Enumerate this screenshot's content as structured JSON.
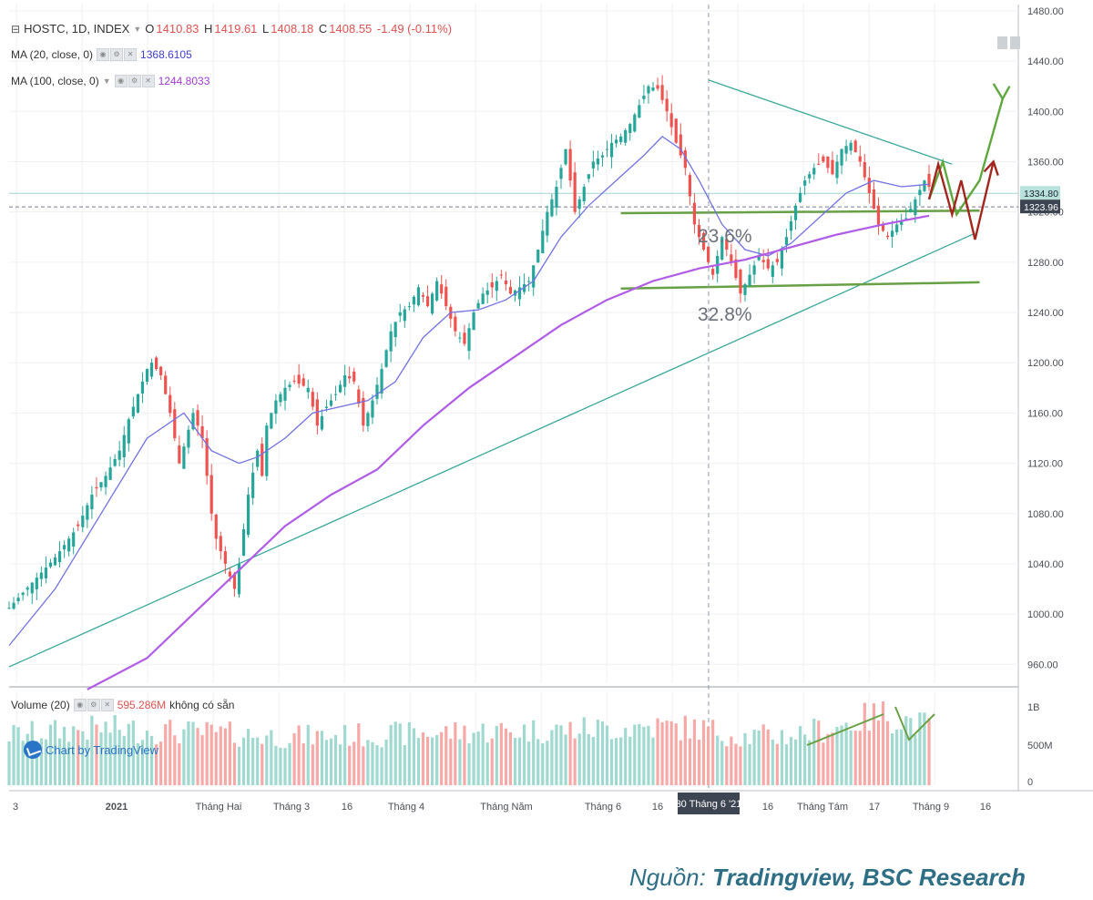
{
  "symbol": "HOSTC, 1D, INDEX",
  "ohlc": {
    "o_label": "O",
    "o": "1410.83",
    "h_label": "H",
    "h": "1419.61",
    "l_label": "L",
    "l": "1408.18",
    "c_label": "C",
    "c": "1408.55",
    "change": "-1.49 (-0.11%)"
  },
  "ma20": {
    "label": "MA (20, close, 0)",
    "value": "1368.6105"
  },
  "ma100": {
    "label": "MA (100, close, 0)",
    "value": "1244.8033"
  },
  "volume_legend": {
    "label": "Volume (20)",
    "value": "595.286M",
    "note": "không có sẵn"
  },
  "watermark": "Chart by TradingView",
  "source_prefix": "Nguồn: ",
  "source_text": "Tradingview, BSC Research",
  "colors": {
    "up": "#26a69a",
    "down": "#ef5350",
    "ma20": "#7272e6",
    "ma100": "#b05ce6",
    "trend": "#3aa89a",
    "support": "#68a046",
    "arrow_up": "#5fa83e",
    "arrow_down": "#a3261e",
    "grid": "#eef0f2"
  },
  "chart_data": {
    "type": "candlestick",
    "title": "HOSTC, 1D, INDEX",
    "y_ticks": [
      "1480.00",
      "1440.00",
      "1400.00",
      "1360.00",
      "1320.00",
      "1280.00",
      "1240.00",
      "1200.00",
      "1160.00",
      "1120.00",
      "1080.00",
      "1040.00",
      "1000.00",
      "960.00"
    ],
    "ylim": [
      945,
      1485
    ],
    "last_price_labels": [
      "1334.80",
      "1323.96"
    ],
    "x_ticks": [
      "3",
      "2021",
      "Tháng Hai",
      "Tháng 3",
      "16",
      "Tháng 4",
      "Tháng Năm",
      "Tháng 6",
      "16",
      "30 Tháng 6 '21",
      "16",
      "Tháng Tám",
      "17",
      "Tháng 9",
      "16"
    ],
    "volume_ticks": [
      "1B",
      "500M",
      "0"
    ],
    "fib_labels": [
      "23.6%",
      "32.8%"
    ],
    "ma20_label": "MA (20, close, 0)",
    "ma100_label": "MA (100, close, 0)",
    "price_path": [
      [
        0,
        1005
      ],
      [
        5,
        1025
      ],
      [
        10,
        1045
      ],
      [
        15,
        1070
      ],
      [
        18,
        1095
      ],
      [
        21,
        1110
      ],
      [
        24,
        1130
      ],
      [
        26,
        1155
      ],
      [
        28,
        1175
      ],
      [
        30,
        1195
      ],
      [
        31,
        1200
      ],
      [
        33,
        1190
      ],
      [
        35,
        1160
      ],
      [
        37,
        1120
      ],
      [
        40,
        1160
      ],
      [
        42,
        1140
      ],
      [
        44,
        1080
      ],
      [
        45,
        1060
      ],
      [
        47,
        1040
      ],
      [
        49,
        1020
      ],
      [
        50,
        1040
      ],
      [
        52,
        1095
      ],
      [
        54,
        1130
      ],
      [
        55,
        1110
      ],
      [
        56,
        1150
      ],
      [
        58,
        1170
      ],
      [
        60,
        1180
      ],
      [
        62,
        1185
      ],
      [
        65,
        1180
      ],
      [
        67,
        1150
      ],
      [
        69,
        1165
      ],
      [
        71,
        1175
      ],
      [
        73,
        1190
      ],
      [
        75,
        1185
      ],
      [
        77,
        1150
      ],
      [
        79,
        1170
      ],
      [
        81,
        1195
      ],
      [
        83,
        1225
      ],
      [
        85,
        1240
      ],
      [
        87,
        1245
      ],
      [
        89,
        1260
      ],
      [
        91,
        1245
      ],
      [
        93,
        1265
      ],
      [
        95,
        1245
      ],
      [
        97,
        1225
      ],
      [
        99,
        1215
      ],
      [
        101,
        1240
      ],
      [
        103,
        1255
      ],
      [
        105,
        1260
      ],
      [
        107,
        1270
      ],
      [
        109,
        1255
      ],
      [
        111,
        1260
      ],
      [
        113,
        1265
      ],
      [
        115,
        1290
      ],
      [
        117,
        1320
      ],
      [
        119,
        1340
      ],
      [
        121,
        1370
      ],
      [
        123,
        1320
      ],
      [
        125,
        1340
      ],
      [
        127,
        1360
      ],
      [
        129,
        1365
      ],
      [
        131,
        1375
      ],
      [
        133,
        1380
      ],
      [
        135,
        1390
      ],
      [
        137,
        1405
      ],
      [
        139,
        1420
      ],
      [
        141,
        1418
      ],
      [
        143,
        1400
      ],
      [
        145,
        1375
      ],
      [
        147,
        1355
      ],
      [
        149,
        1310
      ],
      [
        151,
        1290
      ],
      [
        153,
        1270
      ],
      [
        155,
        1300
      ],
      [
        157,
        1280
      ],
      [
        159,
        1255
      ],
      [
        161,
        1270
      ],
      [
        163,
        1285
      ],
      [
        165,
        1275
      ],
      [
        167,
        1280
      ],
      [
        169,
        1300
      ],
      [
        171,
        1325
      ],
      [
        173,
        1345
      ],
      [
        175,
        1355
      ],
      [
        177,
        1360
      ],
      [
        179,
        1350
      ],
      [
        181,
        1370
      ],
      [
        183,
        1375
      ],
      [
        185,
        1360
      ],
      [
        187,
        1335
      ],
      [
        189,
        1310
      ],
      [
        191,
        1300
      ],
      [
        193,
        1310
      ],
      [
        195,
        1315
      ],
      [
        197,
        1330
      ],
      [
        199,
        1345
      ],
      [
        200,
        1340
      ]
    ],
    "ma20_path": [
      [
        0,
        975
      ],
      [
        10,
        1020
      ],
      [
        20,
        1080
      ],
      [
        30,
        1140
      ],
      [
        38,
        1160
      ],
      [
        44,
        1130
      ],
      [
        50,
        1120
      ],
      [
        54,
        1125
      ],
      [
        60,
        1140
      ],
      [
        66,
        1160
      ],
      [
        72,
        1165
      ],
      [
        78,
        1170
      ],
      [
        84,
        1185
      ],
      [
        90,
        1220
      ],
      [
        96,
        1240
      ],
      [
        102,
        1242
      ],
      [
        108,
        1250
      ],
      [
        114,
        1265
      ],
      [
        120,
        1300
      ],
      [
        126,
        1325
      ],
      [
        132,
        1345
      ],
      [
        138,
        1365
      ],
      [
        142,
        1380
      ],
      [
        146,
        1370
      ],
      [
        150,
        1345
      ],
      [
        155,
        1310
      ],
      [
        160,
        1290
      ],
      [
        165,
        1285
      ],
      [
        170,
        1295
      ],
      [
        176,
        1315
      ],
      [
        182,
        1335
      ],
      [
        188,
        1345
      ],
      [
        194,
        1340
      ],
      [
        200,
        1342
      ]
    ],
    "ma100_path": [
      [
        17,
        940
      ],
      [
        30,
        965
      ],
      [
        40,
        1000
      ],
      [
        50,
        1035
      ],
      [
        60,
        1070
      ],
      [
        70,
        1095
      ],
      [
        80,
        1115
      ],
      [
        90,
        1150
      ],
      [
        100,
        1180
      ],
      [
        110,
        1205
      ],
      [
        120,
        1230
      ],
      [
        130,
        1250
      ],
      [
        140,
        1265
      ],
      [
        150,
        1275
      ],
      [
        160,
        1282
      ],
      [
        170,
        1292
      ],
      [
        180,
        1302
      ],
      [
        190,
        1310
      ],
      [
        200,
        1317
      ]
    ],
    "volume_path": [
      [
        0,
        0.6
      ],
      [
        20,
        0.68
      ],
      [
        40,
        0.63
      ],
      [
        60,
        0.58
      ],
      [
        80,
        0.6
      ],
      [
        100,
        0.64
      ],
      [
        120,
        0.66
      ],
      [
        140,
        0.7
      ],
      [
        150,
        0.68
      ],
      [
        160,
        0.58
      ],
      [
        170,
        0.6
      ],
      [
        180,
        0.7
      ],
      [
        190,
        0.85
      ],
      [
        200,
        0.7
      ]
    ]
  }
}
